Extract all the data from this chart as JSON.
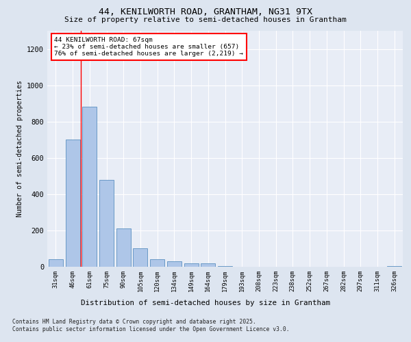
{
  "title1": "44, KENILWORTH ROAD, GRANTHAM, NG31 9TX",
  "title2": "Size of property relative to semi-detached houses in Grantham",
  "xlabel": "Distribution of semi-detached houses by size in Grantham",
  "ylabel": "Number of semi-detached properties",
  "categories": [
    "31sqm",
    "46sqm",
    "61sqm",
    "75sqm",
    "90sqm",
    "105sqm",
    "120sqm",
    "134sqm",
    "149sqm",
    "164sqm",
    "179sqm",
    "193sqm",
    "208sqm",
    "223sqm",
    "238sqm",
    "252sqm",
    "267sqm",
    "282sqm",
    "297sqm",
    "311sqm",
    "326sqm"
  ],
  "values": [
    40,
    700,
    880,
    480,
    210,
    100,
    40,
    30,
    20,
    20,
    5,
    1,
    0,
    0,
    0,
    0,
    0,
    1,
    0,
    0,
    5
  ],
  "bar_color": "#aec6e8",
  "bar_edge_color": "#5a8fc0",
  "property_label": "44 KENILWORTH ROAD: 67sqm",
  "pct_smaller": 23,
  "pct_larger": 76,
  "count_smaller": 657,
  "count_larger": 2219,
  "vline_x": 1.5,
  "ylim": [
    0,
    1300
  ],
  "yticks": [
    0,
    200,
    400,
    600,
    800,
    1000,
    1200
  ],
  "footnote1": "Contains HM Land Registry data © Crown copyright and database right 2025.",
  "footnote2": "Contains public sector information licensed under the Open Government Licence v3.0.",
  "bg_color": "#dde5f0",
  "plot_bg_color": "#e8edf6"
}
